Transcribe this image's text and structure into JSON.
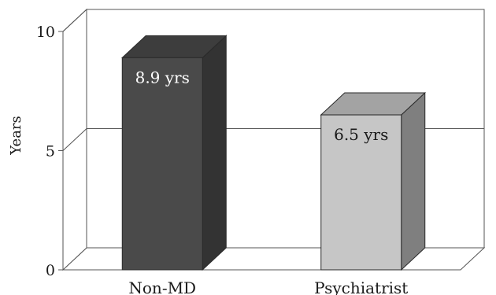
{
  "chart_data": {
    "type": "bar",
    "title": "",
    "xlabel": "",
    "ylabel": "Years",
    "ylim": [
      0,
      10
    ],
    "yticks": [
      0,
      5,
      10
    ],
    "grid": true,
    "categories": [
      "Non-MD",
      "Psychiatrist"
    ],
    "values": [
      8.9,
      6.5
    ],
    "data_labels": [
      "8.9 yrs",
      "6.5 yrs"
    ],
    "colors": [
      {
        "front": "#4a4a4a",
        "side": "#333333",
        "top": "#3d3d3d",
        "label": "#ffffff"
      },
      {
        "front": "#c6c6c6",
        "side": "#7f7f7f",
        "top": "#a3a3a3",
        "label": "#1a1a1a"
      }
    ]
  }
}
